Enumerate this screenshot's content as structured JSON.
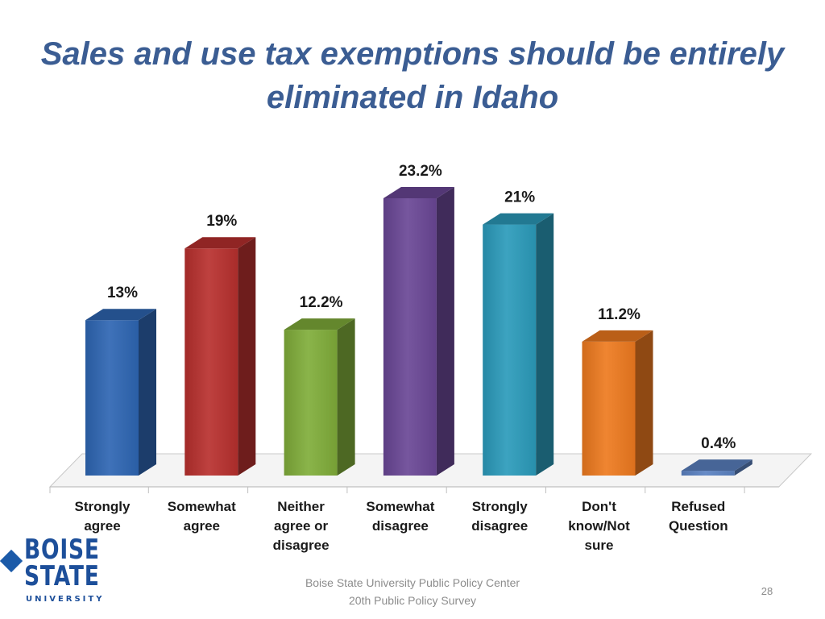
{
  "slide": {
    "title_line1": "Sales and use tax exemptions should be entirely",
    "title_line2": "eliminated in Idaho",
    "source_line1": "Boise State University  Public Policy Center",
    "source_line2": "20th Public Policy Survey",
    "page_number": "28",
    "logo": {
      "text": "BOISE STATE UNIVERSITY",
      "word1": "BOISE",
      "word2": "STATE",
      "word3": "UNIVERSITY",
      "color": "#1d4f9a"
    }
  },
  "chart_data": {
    "type": "bar",
    "title": "Sales and use tax exemptions should be entirely eliminated in Idaho",
    "categories": [
      [
        "Strongly",
        "agree"
      ],
      [
        "Somewhat",
        "agree"
      ],
      [
        "Neither",
        "agree or",
        "disagree"
      ],
      [
        "Somewhat",
        "disagree"
      ],
      [
        "Strongly",
        "disagree"
      ],
      [
        "Don't",
        "know/Not",
        "sure"
      ],
      [
        "Refused",
        "Question"
      ]
    ],
    "values": [
      13,
      19,
      12.2,
      23.2,
      21,
      11.2,
      0.4
    ],
    "value_labels": [
      "13%",
      "19%",
      "12.2%",
      "23.2%",
      "21%",
      "11.2%",
      "0.4%"
    ],
    "colors": [
      "#2e66b3",
      "#b8302e",
      "#80ad3a",
      "#6a4796",
      "#2b9bbb",
      "#ee7a1f",
      "#5b82c2"
    ],
    "xlabel": "",
    "ylabel": "",
    "grid": false,
    "legend": "none"
  }
}
